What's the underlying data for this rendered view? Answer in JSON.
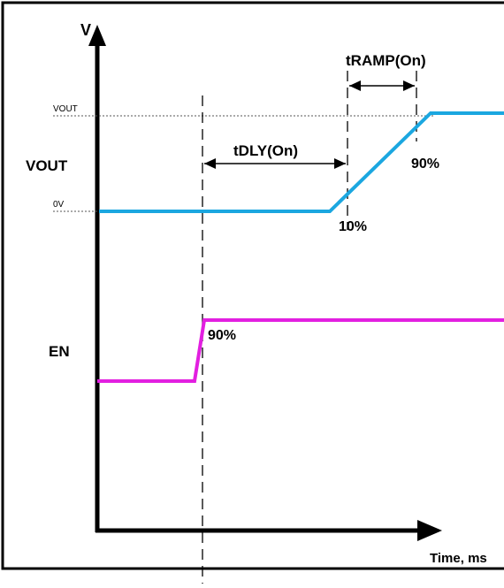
{
  "diagram": {
    "y_axis_label": "V",
    "x_axis_label": "Time, ms",
    "vout_level_label": "VOUT",
    "zero_level_label": "0V",
    "vout_signal_label": "VOUT",
    "en_signal_label": "EN",
    "tdly_label": "tDLY(On)",
    "tramp_label": "tRAMP(On)",
    "vout_10pct_label": "10%",
    "vout_90pct_label": "90%",
    "en_90pct_label": "90%"
  },
  "colors": {
    "vout_trace": "#1ba7e0",
    "en_trace": "#e21fe0",
    "axis": "#000000",
    "border": "#000000"
  }
}
